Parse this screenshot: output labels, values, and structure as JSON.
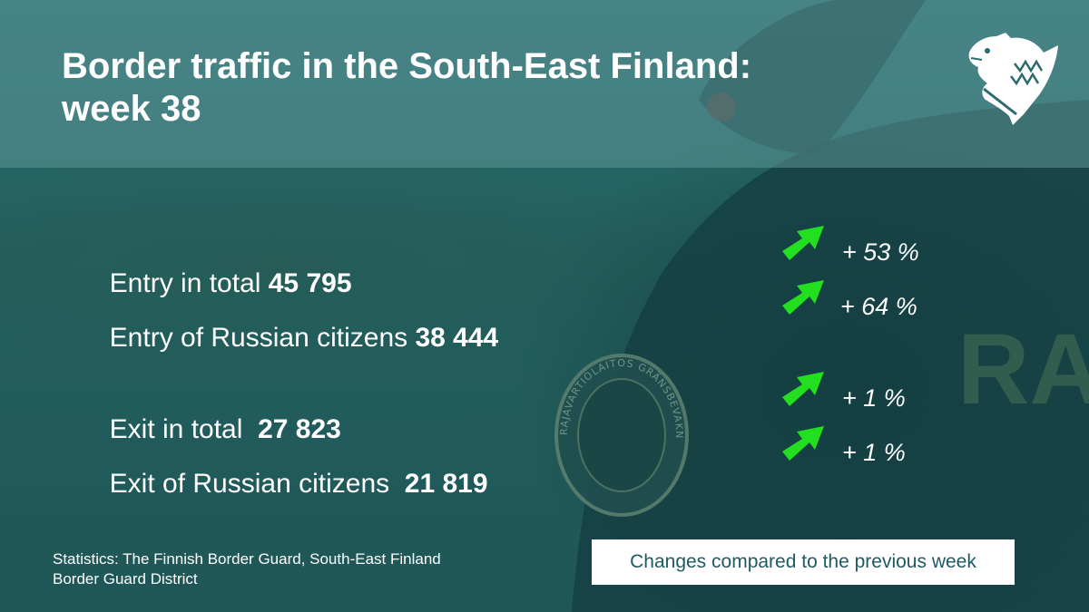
{
  "title_line1": "Border traffic in the South-East Finland:",
  "title_line2": "week 38",
  "rows": [
    {
      "label": "Entry in total ",
      "value": "45 795",
      "change": "+ 53 %"
    },
    {
      "label": "Entry of Russian citizens ",
      "value": "38 444",
      "change": "+ 64 %"
    },
    {
      "label": "Exit in total  ",
      "value": "27 823",
      "change": "+ 1 %"
    },
    {
      "label": "Exit of Russian citizens  ",
      "value": "21 819",
      "change": "+ 1 %"
    }
  ],
  "source_line1": "Statistics: The Finnish Border Guard, South-East Finland",
  "source_line2": "Border Guard District",
  "note": "Changes compared to the previous week",
  "patch_text": "RAJAVARTIOLAITOS GRÄNSBEVAKNINGSVÄSENDET",
  "back_text": "RA",
  "icons": {
    "trend": "arrow-up-right-icon",
    "logo": "border-guard-bear-logo"
  },
  "colors": {
    "arrow": "#22e01f",
    "note_text": "#1e5a63",
    "band": "#5c9698"
  }
}
